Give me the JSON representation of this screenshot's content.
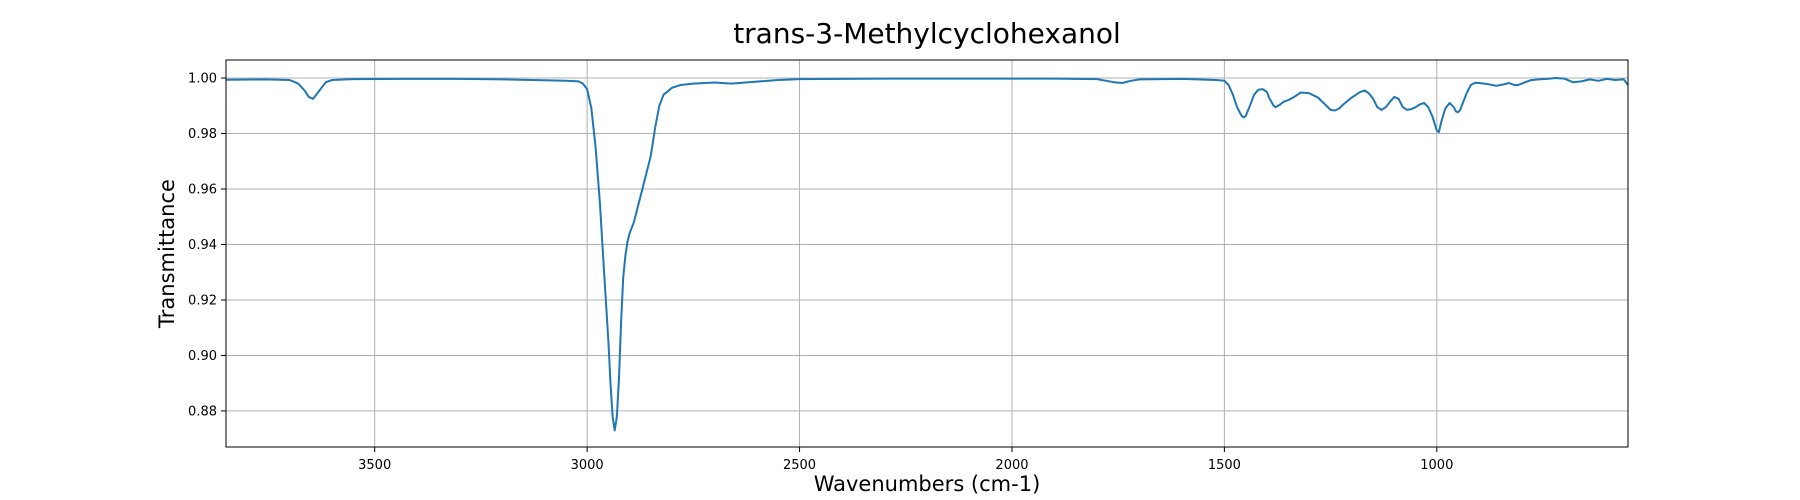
{
  "chart_data": {
    "type": "line",
    "title": "trans-3-Methylcyclohexanol",
    "xlabel": "Wavenumbers (cm-1)",
    "ylabel": "Transmittance",
    "xlim": [
      3850,
      550
    ],
    "ylim": [
      0.867,
      1.0065
    ],
    "x_axis_reversed": true,
    "grid": true,
    "line_color": "#1f77b4",
    "x_ticks": [
      3500,
      3000,
      2500,
      2000,
      1500,
      1000
    ],
    "x_tick_labels": [
      "3500",
      "3000",
      "2500",
      "2000",
      "1500",
      "1000"
    ],
    "y_ticks": [
      0.88,
      0.9,
      0.92,
      0.94,
      0.96,
      0.98,
      1.0
    ],
    "y_tick_labels": [
      "0.88",
      "0.90",
      "0.92",
      "0.94",
      "0.96",
      "0.98",
      "1.00"
    ],
    "series": [
      {
        "x": [
          3850,
          3760,
          3700,
          3680,
          3665,
          3655,
          3645,
          3630,
          3615,
          3600,
          3550,
          3450,
          3300,
          3200,
          3100,
          3050,
          3020,
          3010,
          3000,
          2990,
          2980,
          2970,
          2960,
          2950,
          2945,
          2940,
          2935,
          2930,
          2925,
          2920,
          2915,
          2910,
          2905,
          2900,
          2895,
          2890,
          2880,
          2870,
          2860,
          2850,
          2840,
          2830,
          2820,
          2800,
          2780,
          2750,
          2700,
          2660,
          2620,
          2550,
          2500,
          2300,
          2100,
          1900,
          1800,
          1760,
          1740,
          1730,
          1720,
          1700,
          1600,
          1520,
          1500,
          1490,
          1480,
          1470,
          1460,
          1455,
          1450,
          1440,
          1430,
          1420,
          1410,
          1400,
          1395,
          1385,
          1380,
          1370,
          1360,
          1350,
          1340,
          1320,
          1300,
          1280,
          1265,
          1250,
          1240,
          1230,
          1220,
          1200,
          1180,
          1170,
          1160,
          1150,
          1140,
          1130,
          1120,
          1110,
          1100,
          1090,
          1080,
          1070,
          1060,
          1050,
          1040,
          1030,
          1020,
          1010,
          1000,
          995,
          990,
          980,
          970,
          960,
          955,
          950,
          945,
          940,
          930,
          920,
          910,
          900,
          880,
          860,
          840,
          830,
          820,
          810,
          800,
          780,
          760,
          740,
          720,
          700,
          680,
          660,
          640,
          620,
          600,
          580,
          560,
          550
        ],
        "y": [
          0.9994,
          0.9995,
          0.9993,
          0.998,
          0.9955,
          0.9932,
          0.9925,
          0.9955,
          0.9985,
          0.9993,
          0.9996,
          0.9997,
          0.9997,
          0.9995,
          0.9992,
          0.999,
          0.9988,
          0.998,
          0.996,
          0.989,
          0.975,
          0.955,
          0.93,
          0.905,
          0.89,
          0.878,
          0.873,
          0.878,
          0.892,
          0.912,
          0.928,
          0.936,
          0.941,
          0.944,
          0.946,
          0.948,
          0.954,
          0.96,
          0.966,
          0.972,
          0.982,
          0.99,
          0.994,
          0.9965,
          0.9975,
          0.998,
          0.9984,
          0.998,
          0.9985,
          0.9993,
          0.9996,
          0.9998,
          0.9998,
          0.9998,
          0.9996,
          0.9985,
          0.9982,
          0.9986,
          0.999,
          0.9995,
          0.9997,
          0.9993,
          0.999,
          0.9975,
          0.994,
          0.9895,
          0.9865,
          0.9858,
          0.9862,
          0.99,
          0.994,
          0.9958,
          0.996,
          0.995,
          0.993,
          0.9902,
          0.9895,
          0.9903,
          0.9915,
          0.992,
          0.9928,
          0.9948,
          0.9945,
          0.993,
          0.9908,
          0.9885,
          0.9883,
          0.989,
          0.9905,
          0.993,
          0.995,
          0.9955,
          0.9945,
          0.9925,
          0.9895,
          0.9885,
          0.9895,
          0.9915,
          0.9932,
          0.9925,
          0.9895,
          0.9885,
          0.9888,
          0.9895,
          0.9905,
          0.991,
          0.9895,
          0.986,
          0.981,
          0.9805,
          0.984,
          0.989,
          0.991,
          0.9895,
          0.988,
          0.9876,
          0.9885,
          0.9905,
          0.9945,
          0.9975,
          0.9983,
          0.9982,
          0.9978,
          0.9972,
          0.9978,
          0.9982,
          0.9976,
          0.9974,
          0.998,
          0.9992,
          0.9995,
          0.9997,
          1.0,
          0.9998,
          0.9985,
          0.9988,
          0.9995,
          0.999,
          0.9997,
          0.9993,
          0.9995,
          0.9975
        ]
      }
    ]
  }
}
